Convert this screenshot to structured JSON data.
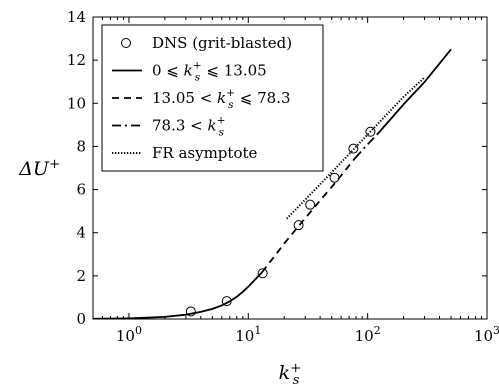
{
  "chart_data": {
    "type": "line",
    "xlabel": "k_s^+",
    "ylabel": "ΔU^+",
    "xscale": "log",
    "xlim": [
      0.5,
      1000
    ],
    "ylim": [
      0,
      14
    ],
    "grid": false,
    "legend_position": "top-left",
    "x_ticks": [
      {
        "value": 1,
        "base": "10",
        "exp": "0"
      },
      {
        "value": 10,
        "base": "10",
        "exp": "1"
      },
      {
        "value": 100,
        "base": "10",
        "exp": "2"
      },
      {
        "value": 1000,
        "base": "10",
        "exp": "3"
      }
    ],
    "y_ticks": [
      "0",
      "2",
      "4",
      "6",
      "8",
      "10",
      "12",
      "14"
    ],
    "legend": [
      {
        "key": "dns",
        "label": "DNS (grit-blasted)",
        "marker": "open-circle"
      },
      {
        "key": "regime1",
        "label": "0 ⩽ k_s^+ ⩽ 13.05",
        "style": "solid"
      },
      {
        "key": "regime2",
        "label": "13.05 < k_s^+ ⩽ 78.3",
        "style": "dashed"
      },
      {
        "key": "regime3",
        "label": "78.3 < k_s^+",
        "style": "dashdot"
      },
      {
        "key": "fr",
        "label": "FR asymptote",
        "style": "dotted"
      }
    ],
    "series": [
      {
        "key": "dns",
        "name": "DNS (grit-blasted)",
        "kind": "scatter",
        "x": [
          3.3,
          6.6,
          13.2,
          26.4,
          33.0,
          52.8,
          75.9,
          105.6
        ],
        "y": [
          0.35,
          0.83,
          2.12,
          4.35,
          5.3,
          6.55,
          7.9,
          8.68
        ]
      },
      {
        "key": "regime1",
        "name": "0 ⩽ k_s^+ ⩽ 13.05",
        "kind": "line",
        "style": "solid",
        "x": [
          0.5,
          1,
          2,
          3,
          4,
          5,
          6,
          7,
          8,
          9,
          10,
          11,
          12,
          13.05
        ],
        "y": [
          0.01,
          0.03,
          0.1,
          0.2,
          0.33,
          0.47,
          0.63,
          0.82,
          1.03,
          1.26,
          1.5,
          1.74,
          1.96,
          2.17
        ]
      },
      {
        "key": "regime2",
        "name": "13.05 < k_s^+ ⩽ 78.3",
        "kind": "line",
        "style": "dashed",
        "x": [
          13.05,
          15,
          20,
          25,
          30,
          40,
          50,
          60,
          78.3
        ],
        "y": [
          2.17,
          2.6,
          3.5,
          4.15,
          4.67,
          5.5,
          6.12,
          6.65,
          7.45
        ]
      },
      {
        "key": "regime3",
        "name": "78.3 < k_s^+",
        "kind": "line",
        "style": "dashdot",
        "x": [
          78.3,
          100,
          120
        ],
        "y": [
          7.45,
          8.1,
          8.55
        ]
      },
      {
        "key": "regime3_cont",
        "kind": "line",
        "style": "solid",
        "x": [
          120,
          200,
          300,
          500
        ],
        "y": [
          8.55,
          9.95,
          10.99,
          12.5
        ]
      },
      {
        "key": "fr",
        "name": "FR asymptote",
        "kind": "line",
        "style": "dotted",
        "x": [
          21,
          50,
          100,
          200,
          300
        ],
        "y": [
          4.65,
          6.8,
          8.55,
          10.3,
          11.2
        ]
      }
    ]
  }
}
